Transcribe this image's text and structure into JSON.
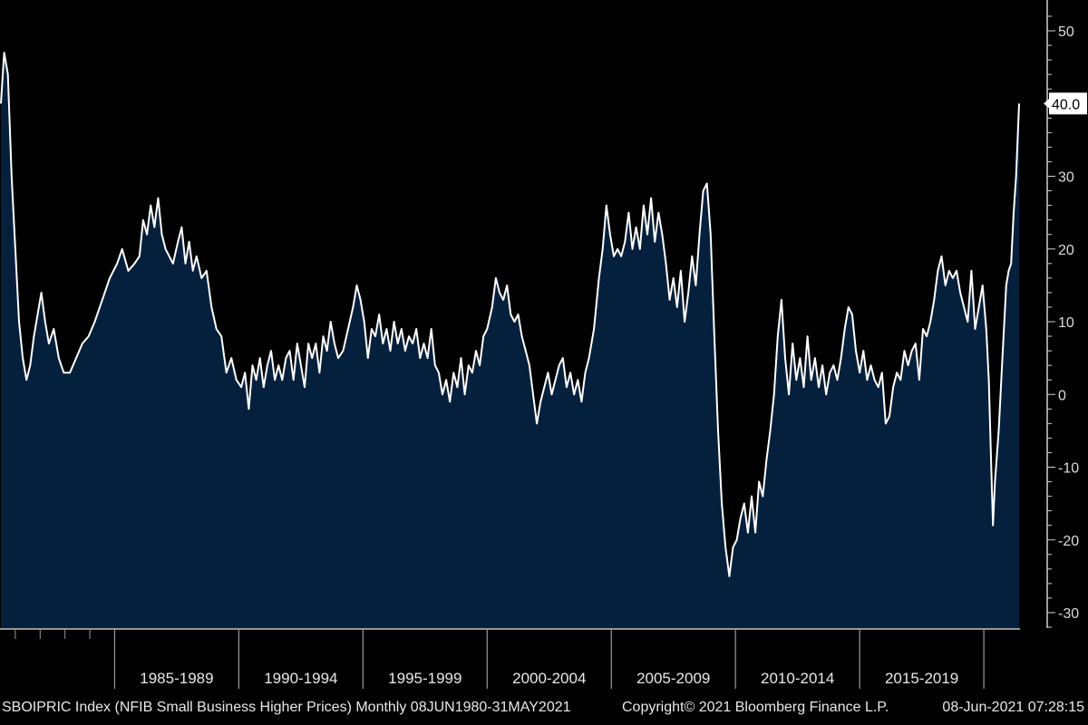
{
  "chart_data": {
    "type": "area",
    "title": "",
    "xlabel": "",
    "ylabel": "",
    "ylim": [
      -32,
      53
    ],
    "y_ticks": [
      50,
      40,
      30,
      20,
      10,
      0,
      -10,
      -20,
      -30
    ],
    "last_value_label": "40.0",
    "categories": [
      "1985-1989",
      "1990-1994",
      "1995-1999",
      "2000-2004",
      "2005-2009",
      "2010-2014",
      "2015-2019"
    ],
    "grid": false,
    "colors": {
      "background": "#000000",
      "fill": "#05203d",
      "line": "#ffffff",
      "axis": "#ffffff",
      "last_label_bg": "#ffffff"
    },
    "series": [
      {
        "name": "SBOIPRIC Index",
        "x_range": [
          "Jun 1980",
          "May 2021"
        ],
        "points": [
          [
            1980.42,
            40
          ],
          [
            1980.55,
            47
          ],
          [
            1980.7,
            44
          ],
          [
            1980.85,
            30
          ],
          [
            1981.0,
            20
          ],
          [
            1981.15,
            10
          ],
          [
            1981.3,
            5
          ],
          [
            1981.45,
            2
          ],
          [
            1981.6,
            4
          ],
          [
            1981.75,
            8
          ],
          [
            1981.9,
            11
          ],
          [
            1982.05,
            14
          ],
          [
            1982.2,
            10
          ],
          [
            1982.35,
            7
          ],
          [
            1982.55,
            9
          ],
          [
            1982.75,
            5
          ],
          [
            1982.95,
            3
          ],
          [
            1983.2,
            3
          ],
          [
            1983.45,
            5
          ],
          [
            1983.7,
            7
          ],
          [
            1983.95,
            8
          ],
          [
            1984.2,
            10
          ],
          [
            1984.5,
            13
          ],
          [
            1984.8,
            16
          ],
          [
            1985.1,
            18
          ],
          [
            1985.3,
            20
          ],
          [
            1985.55,
            17
          ],
          [
            1985.8,
            18
          ],
          [
            1986.0,
            19
          ],
          [
            1986.15,
            24
          ],
          [
            1986.3,
            22
          ],
          [
            1986.45,
            26
          ],
          [
            1986.6,
            23
          ],
          [
            1986.75,
            27
          ],
          [
            1986.9,
            22
          ],
          [
            1987.05,
            20
          ],
          [
            1987.2,
            19
          ],
          [
            1987.35,
            18
          ],
          [
            1987.55,
            21
          ],
          [
            1987.7,
            23
          ],
          [
            1987.85,
            18
          ],
          [
            1988.0,
            21
          ],
          [
            1988.15,
            17
          ],
          [
            1988.3,
            19
          ],
          [
            1988.5,
            16
          ],
          [
            1988.7,
            17
          ],
          [
            1988.9,
            12
          ],
          [
            1989.1,
            9
          ],
          [
            1989.3,
            8
          ],
          [
            1989.5,
            3
          ],
          [
            1989.7,
            5
          ],
          [
            1989.9,
            2
          ],
          [
            1990.1,
            1
          ],
          [
            1990.25,
            3
          ],
          [
            1990.4,
            -2
          ],
          [
            1990.55,
            4
          ],
          [
            1990.7,
            2
          ],
          [
            1990.85,
            5
          ],
          [
            1991.0,
            1
          ],
          [
            1991.15,
            4
          ],
          [
            1991.3,
            6
          ],
          [
            1991.45,
            2
          ],
          [
            1991.6,
            4
          ],
          [
            1991.75,
            2
          ],
          [
            1991.9,
            5
          ],
          [
            1992.05,
            6
          ],
          [
            1992.2,
            2
          ],
          [
            1992.35,
            7
          ],
          [
            1992.5,
            4
          ],
          [
            1992.65,
            1
          ],
          [
            1992.8,
            7
          ],
          [
            1992.95,
            5
          ],
          [
            1993.1,
            7
          ],
          [
            1993.25,
            3
          ],
          [
            1993.4,
            8
          ],
          [
            1993.55,
            6
          ],
          [
            1993.7,
            10
          ],
          [
            1993.85,
            7
          ],
          [
            1994.0,
            5
          ],
          [
            1994.2,
            6
          ],
          [
            1994.4,
            9
          ],
          [
            1994.6,
            12
          ],
          [
            1994.75,
            15
          ],
          [
            1994.9,
            13
          ],
          [
            1995.05,
            10
          ],
          [
            1995.2,
            5
          ],
          [
            1995.35,
            9
          ],
          [
            1995.5,
            8
          ],
          [
            1995.65,
            11
          ],
          [
            1995.8,
            7
          ],
          [
            1995.95,
            9
          ],
          [
            1996.1,
            6
          ],
          [
            1996.25,
            10
          ],
          [
            1996.4,
            7
          ],
          [
            1996.55,
            9
          ],
          [
            1996.7,
            6
          ],
          [
            1996.85,
            8
          ],
          [
            1997.0,
            7
          ],
          [
            1997.15,
            9
          ],
          [
            1997.3,
            5
          ],
          [
            1997.45,
            7
          ],
          [
            1997.6,
            5
          ],
          [
            1997.75,
            9
          ],
          [
            1997.9,
            4
          ],
          [
            1998.05,
            3
          ],
          [
            1998.2,
            0
          ],
          [
            1998.35,
            2
          ],
          [
            1998.5,
            -1
          ],
          [
            1998.65,
            3
          ],
          [
            1998.8,
            1
          ],
          [
            1998.95,
            5
          ],
          [
            1999.1,
            0
          ],
          [
            1999.25,
            4
          ],
          [
            1999.4,
            3
          ],
          [
            1999.55,
            6
          ],
          [
            1999.7,
            4
          ],
          [
            1999.85,
            8
          ],
          [
            2000.0,
            9
          ],
          [
            2000.2,
            12
          ],
          [
            2000.35,
            16
          ],
          [
            2000.5,
            14
          ],
          [
            2000.65,
            13
          ],
          [
            2000.8,
            15
          ],
          [
            2000.95,
            11
          ],
          [
            2001.1,
            10
          ],
          [
            2001.25,
            11
          ],
          [
            2001.4,
            8
          ],
          [
            2001.55,
            6
          ],
          [
            2001.7,
            4
          ],
          [
            2001.85,
            0
          ],
          [
            2002.0,
            -4
          ],
          [
            2002.15,
            -1
          ],
          [
            2002.3,
            1
          ],
          [
            2002.45,
            3
          ],
          [
            2002.6,
            0
          ],
          [
            2002.75,
            2
          ],
          [
            2002.9,
            4
          ],
          [
            2003.05,
            5
          ],
          [
            2003.2,
            1
          ],
          [
            2003.35,
            3
          ],
          [
            2003.5,
            0
          ],
          [
            2003.65,
            2
          ],
          [
            2003.8,
            -1
          ],
          [
            2003.95,
            3
          ],
          [
            2004.1,
            5
          ],
          [
            2004.3,
            9
          ],
          [
            2004.5,
            16
          ],
          [
            2004.65,
            20
          ],
          [
            2004.8,
            26
          ],
          [
            2004.95,
            22
          ],
          [
            2005.1,
            19
          ],
          [
            2005.25,
            20
          ],
          [
            2005.4,
            19
          ],
          [
            2005.55,
            21
          ],
          [
            2005.7,
            25
          ],
          [
            2005.85,
            20
          ],
          [
            2006.0,
            23
          ],
          [
            2006.15,
            20
          ],
          [
            2006.3,
            26
          ],
          [
            2006.45,
            22
          ],
          [
            2006.6,
            27
          ],
          [
            2006.75,
            21
          ],
          [
            2006.9,
            25
          ],
          [
            2007.05,
            22
          ],
          [
            2007.2,
            18
          ],
          [
            2007.35,
            13
          ],
          [
            2007.5,
            16
          ],
          [
            2007.65,
            12
          ],
          [
            2007.8,
            17
          ],
          [
            2007.95,
            10
          ],
          [
            2008.1,
            14
          ],
          [
            2008.25,
            19
          ],
          [
            2008.4,
            15
          ],
          [
            2008.55,
            22
          ],
          [
            2008.7,
            28
          ],
          [
            2008.85,
            29
          ],
          [
            2009.0,
            22
          ],
          [
            2009.15,
            8
          ],
          [
            2009.3,
            -5
          ],
          [
            2009.45,
            -15
          ],
          [
            2009.6,
            -21
          ],
          [
            2009.75,
            -25
          ],
          [
            2009.9,
            -21
          ],
          [
            2010.05,
            -20
          ],
          [
            2010.2,
            -17
          ],
          [
            2010.35,
            -15
          ],
          [
            2010.5,
            -19
          ],
          [
            2010.65,
            -14
          ],
          [
            2010.8,
            -19
          ],
          [
            2010.95,
            -12
          ],
          [
            2011.1,
            -14
          ],
          [
            2011.25,
            -9
          ],
          [
            2011.4,
            -5
          ],
          [
            2011.55,
            0
          ],
          [
            2011.7,
            8
          ],
          [
            2011.85,
            13
          ],
          [
            2012.0,
            5
          ],
          [
            2012.15,
            0
          ],
          [
            2012.3,
            7
          ],
          [
            2012.45,
            2
          ],
          [
            2012.6,
            5
          ],
          [
            2012.75,
            1
          ],
          [
            2012.9,
            8
          ],
          [
            2013.05,
            2
          ],
          [
            2013.2,
            5
          ],
          [
            2013.35,
            1
          ],
          [
            2013.5,
            4
          ],
          [
            2013.65,
            0
          ],
          [
            2013.8,
            3
          ],
          [
            2013.95,
            4
          ],
          [
            2014.1,
            2
          ],
          [
            2014.25,
            5
          ],
          [
            2014.4,
            9
          ],
          [
            2014.55,
            12
          ],
          [
            2014.7,
            11
          ],
          [
            2014.85,
            6
          ],
          [
            2015.0,
            3
          ],
          [
            2015.15,
            6
          ],
          [
            2015.3,
            2
          ],
          [
            2015.45,
            4
          ],
          [
            2015.6,
            2
          ],
          [
            2015.75,
            1
          ],
          [
            2015.9,
            3
          ],
          [
            2016.05,
            -4
          ],
          [
            2016.2,
            -3
          ],
          [
            2016.35,
            1
          ],
          [
            2016.5,
            3
          ],
          [
            2016.65,
            2
          ],
          [
            2016.8,
            6
          ],
          [
            2016.95,
            4
          ],
          [
            2017.1,
            6
          ],
          [
            2017.25,
            7
          ],
          [
            2017.4,
            2
          ],
          [
            2017.55,
            9
          ],
          [
            2017.7,
            8
          ],
          [
            2017.85,
            10
          ],
          [
            2018.0,
            13
          ],
          [
            2018.15,
            17
          ],
          [
            2018.3,
            19
          ],
          [
            2018.45,
            15
          ],
          [
            2018.6,
            17
          ],
          [
            2018.75,
            16
          ],
          [
            2018.9,
            17
          ],
          [
            2019.05,
            14
          ],
          [
            2019.2,
            12
          ],
          [
            2019.35,
            10
          ],
          [
            2019.5,
            17
          ],
          [
            2019.65,
            9
          ],
          [
            2019.8,
            12
          ],
          [
            2019.95,
            15
          ],
          [
            2020.1,
            9
          ],
          [
            2020.2,
            2
          ],
          [
            2020.3,
            -10
          ],
          [
            2020.37,
            -18
          ],
          [
            2020.45,
            -12
          ],
          [
            2020.6,
            -5
          ],
          [
            2020.75,
            5
          ],
          [
            2020.9,
            15
          ],
          [
            2021.0,
            17
          ],
          [
            2021.1,
            18
          ],
          [
            2021.2,
            25
          ],
          [
            2021.3,
            30
          ],
          [
            2021.42,
            40
          ]
        ]
      }
    ]
  },
  "footer": {
    "left": "SBOIPRIC Index (NFIB Small Business Higher Prices)  Monthly 08JUN1980-31MAY2021",
    "center": "Copyright© 2021 Bloomberg Finance L.P.",
    "right": "08-Jun-2021 07:28:15"
  }
}
